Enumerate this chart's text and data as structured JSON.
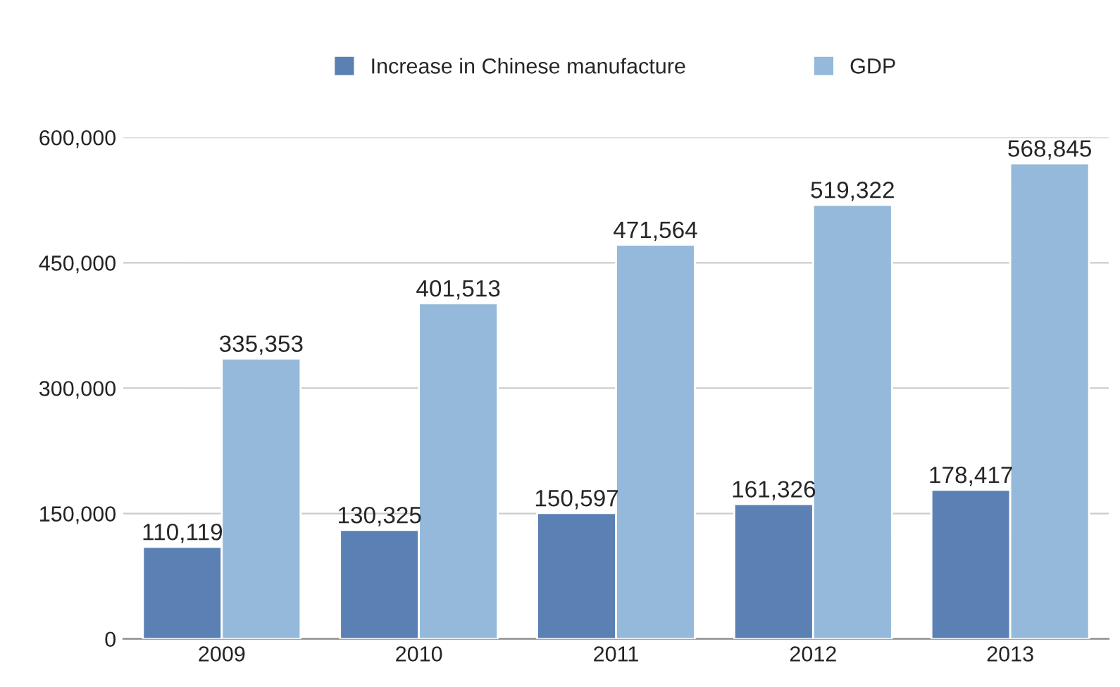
{
  "chart_data": {
    "type": "bar",
    "categories": [
      "2009",
      "2010",
      "2011",
      "2012",
      "2013"
    ],
    "series": [
      {
        "name": "Increase in Chinese manufacture",
        "color": "#5b80b4",
        "values": [
          110119,
          130325,
          150597,
          161326,
          178417
        ]
      },
      {
        "name": "GDP",
        "color": "#94b9da",
        "values": [
          335353,
          401513,
          471564,
          519322,
          568845
        ]
      }
    ],
    "ylim": [
      0,
      600000
    ],
    "yticks": [
      {
        "value": 0,
        "label": "0"
      },
      {
        "value": 150000,
        "label": "150,000"
      },
      {
        "value": 300000,
        "label": "300,000"
      },
      {
        "value": 450000,
        "label": "450,000"
      },
      {
        "value": 600000,
        "label": "600,000"
      }
    ],
    "value_labels": [
      [
        "110,119",
        "130,325",
        "150,597",
        "161,326",
        "178,417"
      ],
      [
        "335,353",
        "401,513",
        "471,564",
        "519,322",
        "568,845"
      ]
    ],
    "grid": "y",
    "legend": "top"
  }
}
